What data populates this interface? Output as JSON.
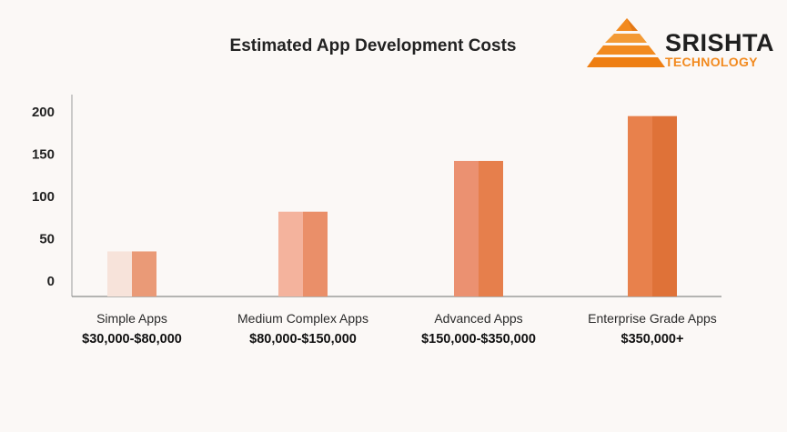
{
  "chart_data": {
    "type": "bar",
    "title": "Estimated App Development Costs",
    "categories": [
      "Simple Apps",
      "Medium Complex Apps",
      "Advanced Apps",
      "Enterprise Grade Apps"
    ],
    "category_sublabels": [
      "$30,000-$80,000",
      "$80,000-$150,000",
      "$150,000-$350,000",
      "$350,000+"
    ],
    "values": [
      35,
      82,
      142,
      195
    ],
    "yticks": [
      0,
      50,
      100,
      150,
      200
    ],
    "ylim": [
      0,
      210
    ],
    "xlabel": "",
    "ylabel": "",
    "grid": false,
    "bar_colors": [
      {
        "light": "#f7e3da",
        "dark": "#ea9a77"
      },
      {
        "light": "#f4b39d",
        "dark": "#ea8f69"
      },
      {
        "light": "#eb9171",
        "dark": "#e67f4c"
      },
      {
        "light": "#e8814c",
        "dark": "#df7238"
      }
    ]
  },
  "logo": {
    "word": "SRISHTA",
    "sub": "TECHNOLOGY",
    "colors": {
      "orange": "#f28a1f",
      "dark": "#1f1f1f"
    }
  }
}
